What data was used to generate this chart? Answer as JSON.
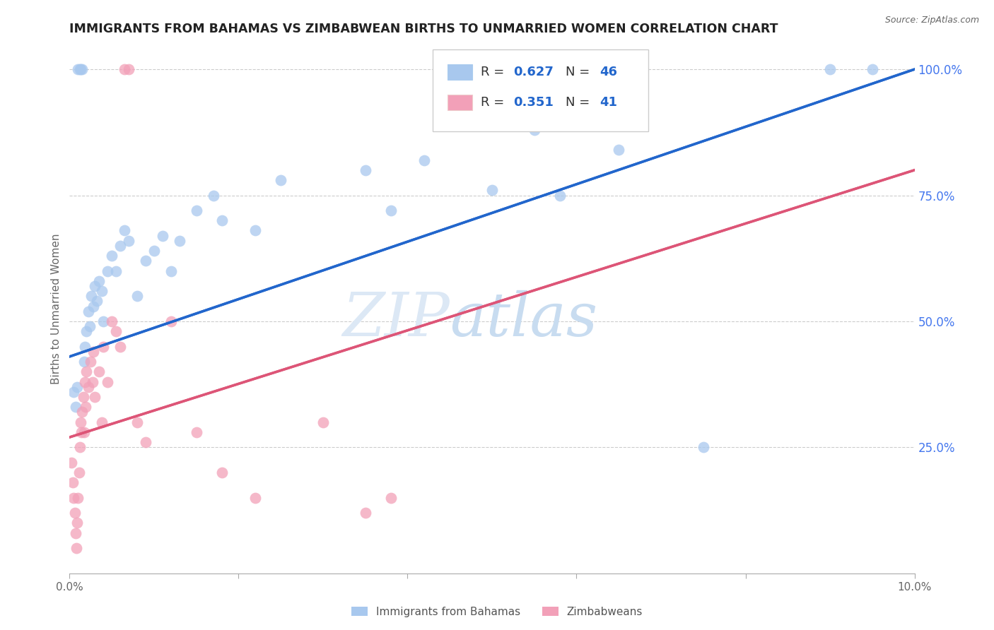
{
  "title": "IMMIGRANTS FROM BAHAMAS VS ZIMBABWEAN BIRTHS TO UNMARRIED WOMEN CORRELATION CHART",
  "source": "Source: ZipAtlas.com",
  "ylabel_left": "Births to Unmarried Women",
  "watermark_zip": "ZIP",
  "watermark_atlas": "atlas",
  "xlim": [
    0.0,
    10.0
  ],
  "ylim": [
    0.0,
    105.0
  ],
  "x_ticks": [
    0.0,
    2.0,
    4.0,
    6.0,
    8.0,
    10.0
  ],
  "x_tick_labels": [
    "0.0%",
    "",
    "",
    "",
    "",
    "10.0%"
  ],
  "y_ticks": [
    25.0,
    50.0,
    75.0,
    100.0
  ],
  "y_tick_labels_right": [
    "25.0%",
    "50.0%",
    "75.0%",
    "100.0%"
  ],
  "legend_blue_label": "Immigrants from Bahamas",
  "legend_pink_label": "Zimbabweans",
  "legend_blue_r": "0.627",
  "legend_blue_n": "46",
  "legend_pink_r": "0.351",
  "legend_pink_n": "41",
  "blue_color": "#A8C8EE",
  "pink_color": "#F2A0B8",
  "blue_line_color": "#2266CC",
  "pink_line_color": "#DD5577",
  "grid_color": "#CCCCCC",
  "right_axis_color": "#4477EE",
  "blue_scatter_x": [
    0.05,
    0.07,
    0.09,
    0.1,
    0.12,
    0.13,
    0.15,
    0.17,
    0.18,
    0.2,
    0.22,
    0.24,
    0.26,
    0.28,
    0.3,
    0.32,
    0.35,
    0.38,
    0.4,
    0.45,
    0.5,
    0.55,
    0.6,
    0.65,
    0.7,
    0.8,
    0.9,
    1.0,
    1.1,
    1.2,
    1.3,
    1.5,
    1.7,
    1.8,
    2.2,
    2.5,
    3.5,
    3.8,
    4.2,
    5.5,
    5.8,
    6.5,
    9.0,
    9.5,
    5.0,
    7.5
  ],
  "blue_scatter_y": [
    36,
    33,
    37,
    100,
    100,
    100,
    100,
    42,
    45,
    48,
    52,
    49,
    55,
    53,
    57,
    54,
    58,
    56,
    50,
    60,
    63,
    60,
    65,
    68,
    66,
    55,
    62,
    64,
    67,
    60,
    66,
    72,
    75,
    70,
    68,
    78,
    80,
    72,
    82,
    88,
    75,
    84,
    100,
    100,
    76,
    25
  ],
  "pink_scatter_x": [
    0.02,
    0.04,
    0.05,
    0.06,
    0.07,
    0.08,
    0.09,
    0.1,
    0.11,
    0.12,
    0.13,
    0.14,
    0.15,
    0.16,
    0.17,
    0.18,
    0.19,
    0.2,
    0.22,
    0.25,
    0.27,
    0.28,
    0.3,
    0.35,
    0.38,
    0.4,
    0.45,
    0.5,
    0.55,
    0.6,
    0.65,
    0.7,
    0.8,
    0.9,
    1.2,
    1.5,
    1.8,
    2.2,
    3.0,
    3.5,
    3.8
  ],
  "pink_scatter_y": [
    22,
    18,
    15,
    12,
    8,
    5,
    10,
    15,
    20,
    25,
    30,
    28,
    32,
    35,
    28,
    38,
    33,
    40,
    37,
    42,
    38,
    44,
    35,
    40,
    30,
    45,
    38,
    50,
    48,
    45,
    100,
    100,
    30,
    26,
    50,
    28,
    20,
    15,
    30,
    12,
    15
  ],
  "blue_trend_x0": 0.0,
  "blue_trend_y0": 43.0,
  "blue_trend_x1": 10.0,
  "blue_trend_y1": 100.0,
  "pink_trend_x0": 0.0,
  "pink_trend_y0": 27.0,
  "pink_trend_x1": 10.0,
  "pink_trend_y1": 80.0
}
